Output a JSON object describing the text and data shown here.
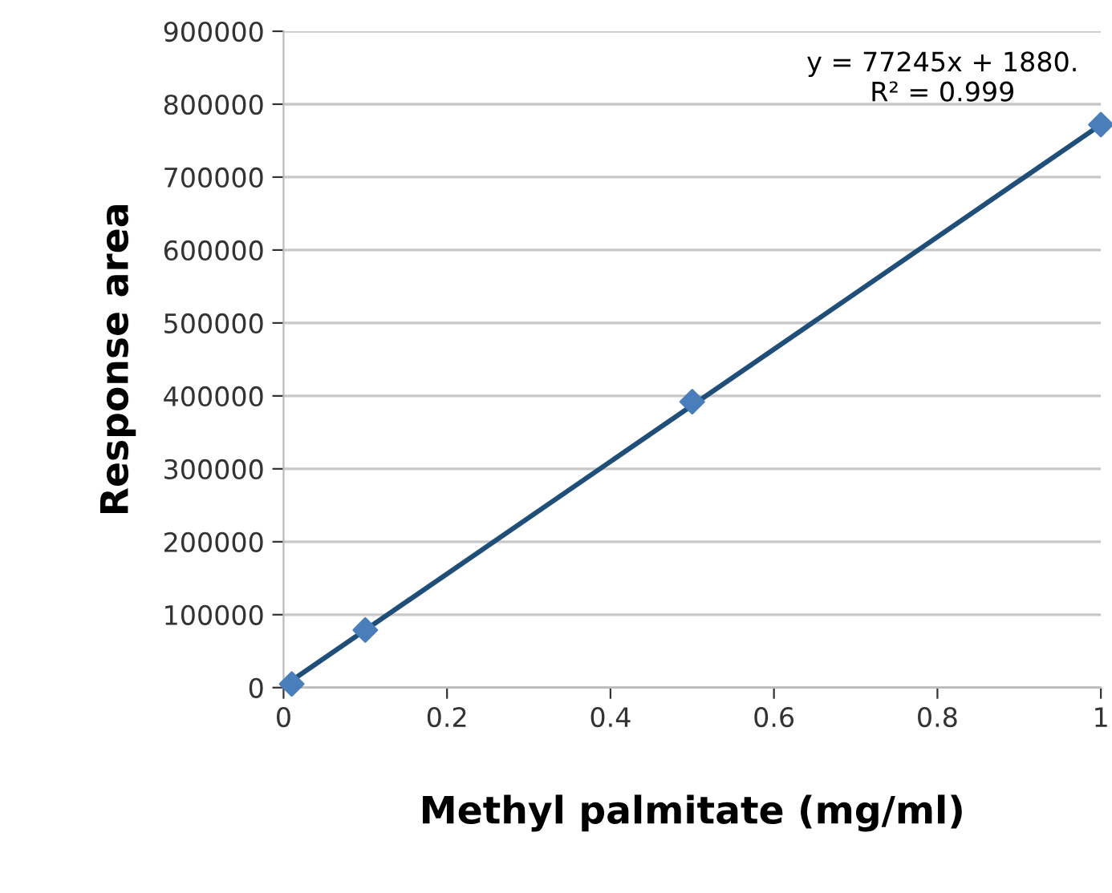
{
  "chart_data": {
    "type": "scatter",
    "xlabel": "Methyl palmitate (mg/ml)",
    "ylabel": "Response area",
    "xlim": [
      0,
      1
    ],
    "xticks": [
      0,
      0.2,
      0.4,
      0.6,
      0.8,
      1
    ],
    "ylim": [
      0,
      900000
    ],
    "yticks": [
      0,
      100000,
      200000,
      300000,
      400000,
      500000,
      600000,
      700000,
      800000,
      900000
    ],
    "grid": "y",
    "legend": false,
    "series": [
      {
        "type": "line",
        "color": "#1f4e79",
        "x": [
          0,
          1
        ],
        "values": [
          2000,
          772000
        ],
        "marker": "none",
        "line_style": "solid"
      },
      {
        "color": "#4a7ebb",
        "x": [
          0.01,
          0.1,
          0.5,
          1
        ],
        "values": [
          5000,
          79000,
          392000,
          772000
        ],
        "marker": "diamond"
      }
    ],
    "annotations": [
      {
        "text": "y = 77245x + 1880.\nR² = 0.999",
        "x": 1,
        "y": 772000
      }
    ]
  }
}
